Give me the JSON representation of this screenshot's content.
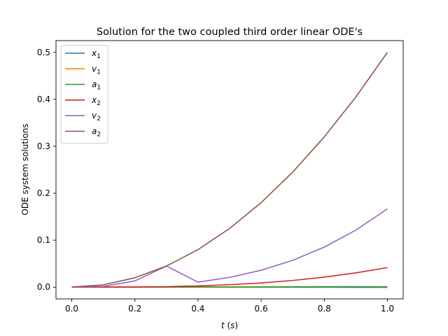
{
  "chart_data": {
    "type": "line",
    "title": "Solution for the two coupled third order linear ODE's",
    "xlabel": "t (s)",
    "ylabel": "ODE system solutions",
    "xlim": [
      -0.05,
      1.05
    ],
    "ylim": [
      -0.025,
      0.525
    ],
    "xticks": [
      0.0,
      0.2,
      0.4,
      0.6,
      0.8,
      1.0
    ],
    "xtick_labels": [
      "0.0",
      "0.2",
      "0.4",
      "0.6",
      "0.8",
      "1.0"
    ],
    "yticks": [
      0.0,
      0.1,
      0.2,
      0.3,
      0.4,
      0.5
    ],
    "ytick_labels": [
      "0.0",
      "0.1",
      "0.2",
      "0.3",
      "0.4",
      "0.5"
    ],
    "grid": false,
    "legend_position": "upper-left",
    "x": [
      0.0,
      0.1,
      0.2,
      0.3,
      0.4,
      0.5,
      0.6,
      0.7,
      0.8,
      0.9,
      1.0
    ],
    "series": [
      {
        "name": "x1",
        "color": "#1f77b4",
        "values": [
          0,
          1e-05,
          0.0001,
          0.0002,
          0.0004,
          0.0006,
          0.0008,
          0.0009,
          0.001,
          0.001,
          0.0009
        ]
      },
      {
        "name": "v1",
        "color": "#ff7f0e",
        "values": [
          0,
          0.0001,
          0.0003,
          0.0005,
          0.0006,
          0.0006,
          0.0005,
          0.0003,
          0.0001,
          -0.0001,
          -0.0003
        ]
      },
      {
        "name": "a1",
        "color": "#2ca02c",
        "values": [
          0,
          0.0002,
          0.0003,
          0.0003,
          0.0002,
          0.0001,
          0.0,
          -0.0001,
          -0.0002,
          -0.0003,
          -0.0004
        ]
      },
      {
        "name": "x2",
        "color": "#d62728",
        "values": [
          0,
          4e-05,
          0.0003,
          0.0011,
          0.0027,
          0.0052,
          0.009,
          0.0143,
          0.0213,
          0.0304,
          0.0417
        ]
      },
      {
        "name": "v2",
        "color": "#9467bd",
        "values": [
          0,
          0.0017,
          0.0133,
          0.045,
          0.0107,
          0.0208,
          0.036,
          0.0572,
          0.0853,
          0.1215,
          0.1667
        ]
      },
      {
        "name": "a2",
        "color": "#8c564b",
        "values": [
          0,
          0.005,
          0.02,
          0.045,
          0.08,
          0.125,
          0.18,
          0.245,
          0.32,
          0.405,
          0.5
        ]
      }
    ]
  }
}
